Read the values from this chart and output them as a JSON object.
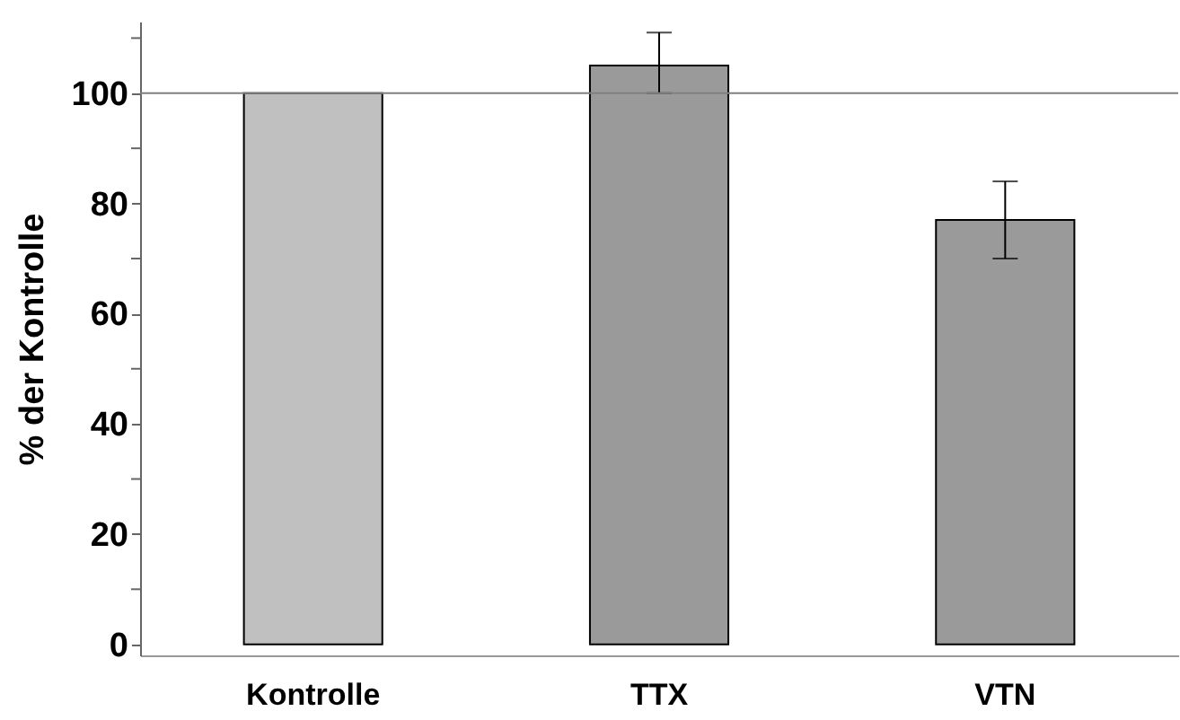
{
  "chart_data": {
    "type": "bar",
    "ylabel": "% der Kontrolle",
    "categories": [
      "Kontrolle",
      "TTX",
      "VTN"
    ],
    "values": [
      100,
      105,
      77
    ],
    "colors": [
      "#c0c0c0",
      "#9a9a9a",
      "#9a9a9a"
    ],
    "errors": [
      null,
      [
        100,
        111
      ],
      [
        70,
        84
      ]
    ],
    "ylim": [
      -2,
      113
    ],
    "yticks": [
      0,
      {
        "value": 10,
        "label": null
      },
      20,
      {
        "value": 30,
        "label": null
      },
      40,
      {
        "value": 50,
        "label": null
      },
      60,
      {
        "value": 70,
        "label": null
      },
      80,
      {
        "value": 90,
        "label": null
      },
      100,
      {
        "value": 110,
        "label": null
      }
    ],
    "ref_lines": [
      {
        "axis": "y",
        "value": 100,
        "color": "#808080"
      }
    ],
    "grid": false,
    "legend": false
  }
}
